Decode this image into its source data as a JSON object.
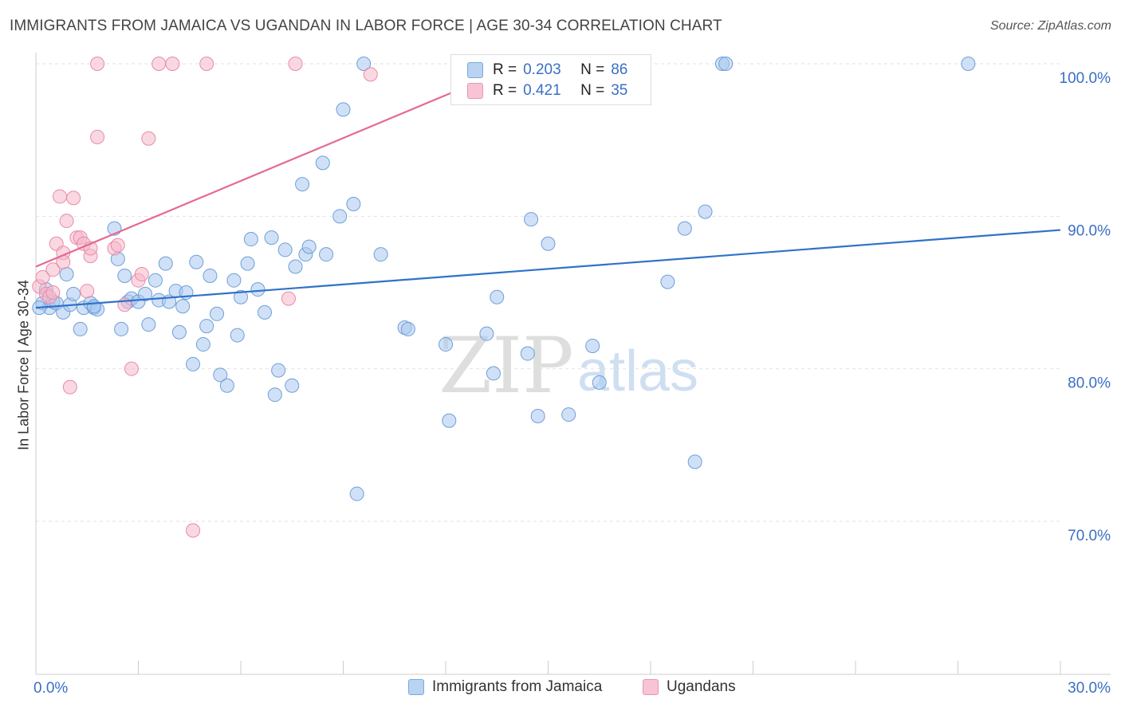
{
  "title": "IMMIGRANTS FROM JAMAICA VS UGANDAN IN LABOR FORCE | AGE 30-34 CORRELATION CHART",
  "source": "Source: ZipAtlas.com",
  "watermark": {
    "zip": "ZIP",
    "atlas": "atlas"
  },
  "legend_top": {
    "rows": [
      {
        "r_label": "R = ",
        "r_value": "0.203",
        "n_label": "N = ",
        "n_value": "86"
      },
      {
        "r_label": "R = ",
        "r_value": "0.421",
        "n_label": "N = ",
        "n_value": "35"
      }
    ]
  },
  "chart_data": {
    "type": "scatter",
    "ylabel": "In Labor Force | Age 30-34",
    "xlim": [
      0,
      30
    ],
    "ylim": [
      60,
      102
    ],
    "x_tick_labels": [
      "0.0%",
      "30.0%"
    ],
    "y_ticks": [
      {
        "value": 100,
        "label": "100.0%"
      },
      {
        "value": 90,
        "label": "90.0%"
      },
      {
        "value": 80,
        "label": "80.0%"
      },
      {
        "value": 70,
        "label": "70.0%"
      }
    ],
    "series": [
      {
        "name": "Immigrants from Jamaica",
        "color": "#a9c8f0",
        "stroke": "#6e9fd8",
        "line_color": "#2f72c8",
        "trend": {
          "x0": 0,
          "y0": 84.0,
          "x1": 30,
          "y1": 89.1
        },
        "points": [
          [
            0.2,
            84.3
          ],
          [
            0.3,
            85.2
          ],
          [
            0.4,
            84.0
          ],
          [
            0.5,
            84.4
          ],
          [
            0.6,
            84.3
          ],
          [
            0.8,
            83.7
          ],
          [
            0.9,
            86.2
          ],
          [
            1.0,
            84.2
          ],
          [
            1.1,
            84.9
          ],
          [
            1.3,
            82.6
          ],
          [
            1.4,
            84.0
          ],
          [
            1.6,
            84.3
          ],
          [
            1.7,
            84.0
          ],
          [
            1.8,
            83.9
          ],
          [
            2.3,
            89.2
          ],
          [
            2.4,
            87.2
          ],
          [
            2.5,
            82.6
          ],
          [
            2.6,
            86.1
          ],
          [
            2.7,
            84.4
          ],
          [
            2.8,
            84.6
          ],
          [
            3.0,
            84.4
          ],
          [
            3.2,
            84.9
          ],
          [
            3.3,
            82.9
          ],
          [
            3.5,
            85.8
          ],
          [
            3.6,
            84.5
          ],
          [
            3.8,
            86.9
          ],
          [
            3.9,
            84.4
          ],
          [
            4.1,
            85.1
          ],
          [
            4.2,
            82.4
          ],
          [
            4.3,
            84.1
          ],
          [
            4.4,
            85.0
          ],
          [
            4.6,
            80.3
          ],
          [
            4.7,
            87.0
          ],
          [
            4.9,
            81.6
          ],
          [
            5.0,
            82.8
          ],
          [
            5.1,
            86.1
          ],
          [
            5.3,
            83.6
          ],
          [
            5.4,
            79.6
          ],
          [
            5.6,
            78.9
          ],
          [
            5.8,
            85.8
          ],
          [
            5.9,
            82.2
          ],
          [
            6.0,
            84.7
          ],
          [
            6.2,
            86.9
          ],
          [
            6.3,
            88.5
          ],
          [
            6.5,
            85.2
          ],
          [
            6.7,
            83.7
          ],
          [
            6.9,
            88.6
          ],
          [
            7.0,
            78.3
          ],
          [
            7.1,
            79.9
          ],
          [
            7.3,
            87.8
          ],
          [
            7.5,
            78.9
          ],
          [
            7.6,
            86.7
          ],
          [
            7.8,
            92.1
          ],
          [
            7.9,
            87.5
          ],
          [
            8.0,
            88.0
          ],
          [
            8.4,
            93.5
          ],
          [
            8.5,
            87.5
          ],
          [
            8.9,
            90.0
          ],
          [
            9.0,
            97.0
          ],
          [
            9.3,
            90.8
          ],
          [
            9.4,
            71.8
          ],
          [
            9.6,
            100.0
          ],
          [
            10.1,
            87.5
          ],
          [
            10.8,
            82.7
          ],
          [
            10.9,
            82.6
          ],
          [
            12.0,
            81.6
          ],
          [
            12.1,
            76.6
          ],
          [
            13.2,
            82.3
          ],
          [
            13.4,
            79.7
          ],
          [
            13.5,
            84.7
          ],
          [
            14.4,
            81.0
          ],
          [
            14.5,
            89.8
          ],
          [
            14.7,
            76.9
          ],
          [
            15.0,
            88.2
          ],
          [
            15.6,
            77.0
          ],
          [
            16.3,
            81.5
          ],
          [
            16.5,
            79.1
          ],
          [
            18.5,
            85.7
          ],
          [
            19.0,
            89.2
          ],
          [
            19.3,
            73.9
          ],
          [
            19.6,
            90.3
          ],
          [
            20.1,
            100.0
          ],
          [
            20.2,
            100.0
          ],
          [
            27.3,
            100.0
          ],
          [
            0.1,
            84.0
          ],
          [
            1.7,
            84.1
          ]
        ]
      },
      {
        "name": "Ugandans",
        "color": "#f5b8cb",
        "stroke": "#e98aa8",
        "line_color": "#e56a93",
        "trend": {
          "x0": 0,
          "y0": 86.7,
          "x1": 14.2,
          "y1": 100.0
        },
        "points": [
          [
            0.1,
            85.4
          ],
          [
            0.2,
            86.0
          ],
          [
            0.3,
            84.9
          ],
          [
            0.4,
            84.7
          ],
          [
            0.5,
            85.0
          ],
          [
            0.5,
            86.5
          ],
          [
            0.6,
            88.2
          ],
          [
            0.7,
            91.3
          ],
          [
            0.8,
            87.6
          ],
          [
            0.8,
            87.0
          ],
          [
            0.9,
            89.7
          ],
          [
            1.0,
            78.8
          ],
          [
            1.1,
            91.2
          ],
          [
            1.2,
            88.6
          ],
          [
            1.3,
            88.6
          ],
          [
            1.4,
            88.2
          ],
          [
            1.5,
            85.1
          ],
          [
            1.6,
            87.4
          ],
          [
            1.6,
            87.9
          ],
          [
            1.8,
            95.2
          ],
          [
            1.8,
            100.0
          ],
          [
            2.3,
            87.9
          ],
          [
            2.4,
            88.1
          ],
          [
            2.6,
            84.2
          ],
          [
            2.8,
            80.0
          ],
          [
            3.0,
            85.8
          ],
          [
            3.1,
            86.2
          ],
          [
            3.3,
            95.1
          ],
          [
            3.6,
            100.0
          ],
          [
            4.0,
            100.0
          ],
          [
            4.6,
            69.4
          ],
          [
            5.0,
            100.0
          ],
          [
            7.4,
            84.6
          ],
          [
            7.6,
            100.0
          ],
          [
            9.8,
            99.3
          ]
        ]
      }
    ]
  }
}
